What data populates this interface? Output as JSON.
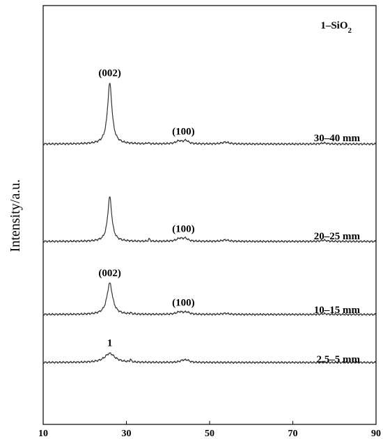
{
  "chart_data": {
    "type": "line",
    "xlabel": "",
    "ylabel": "Intensity/a.u.",
    "xlim": [
      10,
      90
    ],
    "xticks": [
      10,
      30,
      50,
      70,
      90
    ],
    "grid": false,
    "legend": "none",
    "colors": {
      "line": "#333333",
      "frame": "#000000"
    },
    "series": [
      {
        "label": "30–40 mm",
        "offset": 4,
        "baseline": 0,
        "peaks": [
          {
            "x": 26.0,
            "h": 3.0,
            "w": 0.65
          },
          {
            "x": 35.2,
            "h": 0.05,
            "w": 0.2
          },
          {
            "x": 42.6,
            "h": 0.14,
            "w": 0.9
          },
          {
            "x": 44.3,
            "h": 0.16,
            "w": 0.7
          },
          {
            "x": 53.8,
            "h": 0.09,
            "w": 1.0
          },
          {
            "x": 77.5,
            "h": 0.05,
            "w": 0.8
          }
        ]
      },
      {
        "label": "20–25 mm",
        "offset": 0,
        "baseline": 0,
        "peaks": [
          {
            "x": 26.0,
            "h": 2.2,
            "w": 0.6
          },
          {
            "x": 35.5,
            "h": 0.12,
            "w": 0.2
          },
          {
            "x": 42.8,
            "h": 0.14,
            "w": 0.9
          },
          {
            "x": 44.2,
            "h": 0.13,
            "w": 0.7
          },
          {
            "x": 53.8,
            "h": 0.07,
            "w": 1.0
          },
          {
            "x": 77.5,
            "h": 0.06,
            "w": 0.8
          }
        ]
      },
      {
        "label": "10–15 mm",
        "offset": 0,
        "baseline": 0,
        "peaks": [
          {
            "x": 26.0,
            "h": 1.55,
            "w": 0.8
          },
          {
            "x": 31.0,
            "h": 0.06,
            "w": 0.2
          },
          {
            "x": 42.8,
            "h": 0.12,
            "w": 1.0
          },
          {
            "x": 44.5,
            "h": 0.1,
            "w": 0.8
          },
          {
            "x": 53.8,
            "h": 0.05,
            "w": 1.0
          },
          {
            "x": 77.5,
            "h": 0.04,
            "w": 0.8
          }
        ]
      },
      {
        "label": "2.5–5 mm",
        "offset": 0,
        "baseline": 0,
        "peaks": [
          {
            "x": 26.0,
            "h": 0.45,
            "w": 1.5
          },
          {
            "x": 31.0,
            "h": 0.12,
            "w": 0.2
          },
          {
            "x": 43.6,
            "h": 0.1,
            "w": 0.8
          },
          {
            "x": 44.6,
            "h": 0.09,
            "w": 0.6
          }
        ]
      }
    ],
    "annotations": {
      "corner_label": "1–SiO",
      "corner_sub": "2",
      "peak_labels": [
        {
          "series": 0,
          "x": 26.0,
          "text": "(002)"
        },
        {
          "series": 0,
          "x": 43.7,
          "text": "(100)"
        },
        {
          "series": 1,
          "x": 43.7,
          "text": "(100)"
        },
        {
          "series": 2,
          "x": 26.0,
          "text": "(002)"
        },
        {
          "series": 2,
          "x": 43.7,
          "text": "(100)"
        },
        {
          "series": 3,
          "x": 26.0,
          "text": "1"
        }
      ]
    }
  }
}
